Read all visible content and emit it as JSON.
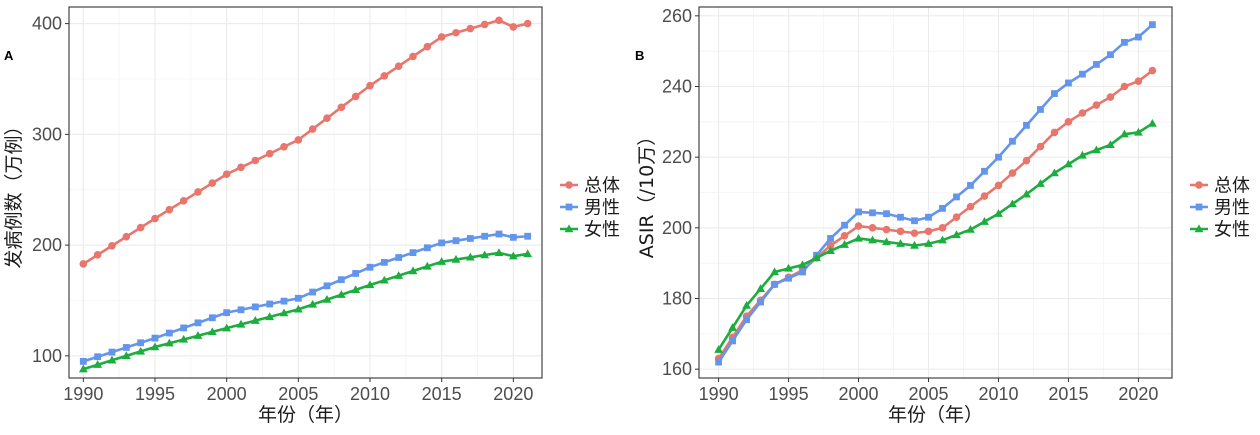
{
  "chart_data": [
    {
      "panel_label": "A",
      "type": "line",
      "xlabel": "年份（年）",
      "ylabel": "发病例数（万例）",
      "xlim": [
        1989,
        2022
      ],
      "ylim": [
        80,
        415
      ],
      "x_ticks": [
        1990,
        1995,
        2000,
        2005,
        2010,
        2015,
        2020
      ],
      "y_ticks": [
        100,
        200,
        300,
        400
      ],
      "grid": true,
      "legend_position": "right",
      "knots": [
        1990,
        1995,
        2000,
        2005,
        2010,
        2015,
        2019,
        2020,
        2021
      ],
      "series": [
        {
          "name": "总体",
          "color": "#E8766D",
          "marker": "circle",
          "knot_values": [
            183,
            224,
            264,
            295,
            344,
            388,
            403,
            397,
            400
          ]
        },
        {
          "name": "男性",
          "color": "#6495ED",
          "marker": "square",
          "knot_values": [
            95,
            116,
            139,
            152,
            180,
            202,
            210,
            207,
            208
          ]
        },
        {
          "name": "女性",
          "color": "#1DAD3F",
          "marker": "triangle",
          "knot_values": [
            88,
            108,
            125,
            142,
            164,
            185,
            193,
            190,
            192
          ]
        }
      ]
    },
    {
      "panel_label": "B",
      "type": "line",
      "xlabel": "年份（年）",
      "ylabel": "ASIR（/10万）",
      "xlim": [
        1988.6,
        2022.4
      ],
      "ylim": [
        157.5,
        262.5
      ],
      "x_ticks": [
        1990,
        1995,
        2000,
        2005,
        2010,
        2015,
        2020
      ],
      "y_ticks": [
        160,
        180,
        200,
        220,
        240,
        260
      ],
      "grid": true,
      "legend_position": "right",
      "knots": [
        1990,
        1992,
        1994,
        1996,
        1998,
        2000,
        2002,
        2004,
        2005,
        2006,
        2008,
        2010,
        2012,
        2014,
        2015,
        2016,
        2018,
        2019,
        2020,
        2021
      ],
      "series": [
        {
          "name": "总体",
          "color": "#E8766D",
          "marker": "circle",
          "knot_values": [
            163,
            175,
            184,
            188,
            195,
            200.5,
            199.5,
            198.5,
            199,
            200,
            206,
            212,
            219,
            227,
            230,
            232.5,
            237,
            240,
            241.5,
            244.5
          ]
        },
        {
          "name": "男性",
          "color": "#6495ED",
          "marker": "square",
          "knot_values": [
            162,
            174,
            184,
            187.5,
            197,
            204.5,
            204,
            202,
            203,
            205.5,
            212,
            220,
            229,
            238,
            241,
            243.5,
            249,
            252.5,
            254,
            257.5
          ]
        },
        {
          "name": "女性",
          "color": "#1DAD3F",
          "marker": "triangle",
          "knot_values": [
            165.5,
            178,
            187.5,
            189.5,
            193.5,
            197,
            196,
            195,
            195.5,
            196.5,
            199.5,
            204,
            209.5,
            215.5,
            218,
            220.5,
            223.5,
            226.5,
            227,
            229.5
          ]
        }
      ]
    }
  ]
}
